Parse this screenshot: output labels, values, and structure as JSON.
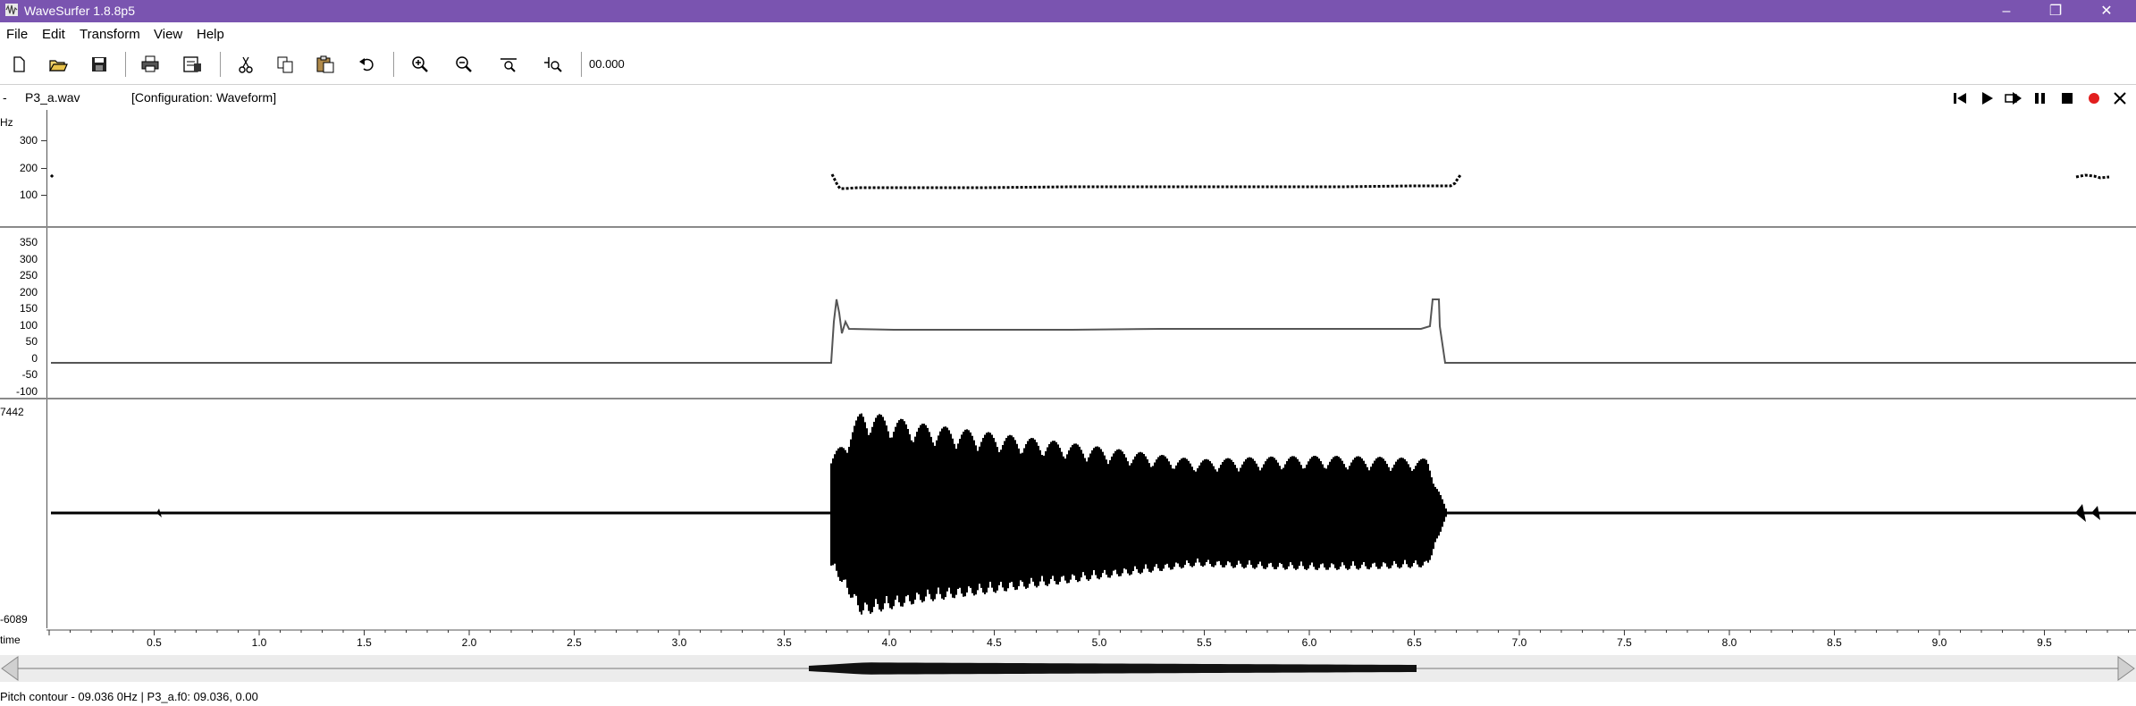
{
  "window": {
    "title": "WaveSurfer 1.8.8p5",
    "accent": "#7a54b0"
  },
  "menu": [
    "File",
    "Edit",
    "Transform",
    "View",
    "Help"
  ],
  "toolbar": {
    "icons": [
      "new-file-icon",
      "open-folder-icon",
      "save-icon",
      "print-icon",
      "properties-icon",
      "cut-icon",
      "copy-icon",
      "paste-icon",
      "undo-icon",
      "zoom-in-icon",
      "zoom-out-icon",
      "zoom-to-selection-icon",
      "zoom-all-icon"
    ],
    "time_readout": "00.000"
  },
  "file": {
    "dash": "-",
    "name": "P3_a.wav",
    "config": "[Configuration: Waveform]"
  },
  "playback": [
    "skip-to-start-icon",
    "play-icon",
    "play-loop-icon",
    "pause-icon",
    "stop-icon",
    "record-icon",
    "close-icon"
  ],
  "pitch_pane": {
    "unit": "Hz",
    "ticks": [
      "300",
      "200",
      "100"
    ]
  },
  "formant_pane": {
    "ticks": [
      "350",
      "300",
      "250",
      "200",
      "150",
      "100",
      "50",
      "0",
      "-50",
      "-100"
    ]
  },
  "waveform_pane": {
    "max": "7442",
    "min": "-6089"
  },
  "time_axis": {
    "label": "time",
    "ticks": [
      "0.5",
      "1.0",
      "1.5",
      "2.0",
      "2.5",
      "3.0",
      "3.5",
      "4.0",
      "4.5",
      "5.0",
      "5.5",
      "6.0",
      "6.5",
      "7.0",
      "7.5",
      "8.0",
      "8.5",
      "9.0",
      "9.5"
    ]
  },
  "status": "Pitch contour - 09.036 0Hz  | P3_a.f0: 09.036, 0.00"
}
